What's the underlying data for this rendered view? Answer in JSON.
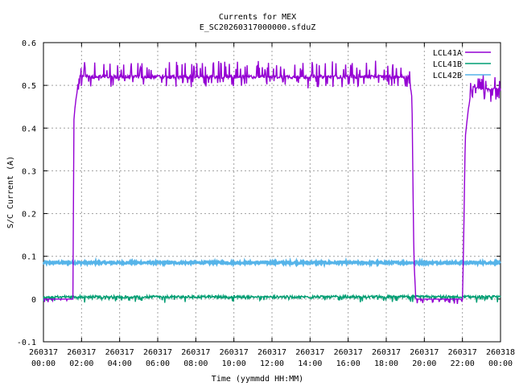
{
  "chart_data": {
    "type": "line",
    "title": "Currents for MEX",
    "subtitle": "E_SC20260317000000.sfduZ",
    "xlabel": "Time (yymmdd HH:MM)",
    "ylabel": "S/C Current (A)",
    "ylim": [
      -0.1,
      0.6
    ],
    "yticks": [
      -0.1,
      0,
      0.1,
      0.2,
      0.3,
      0.4,
      0.5,
      0.6
    ],
    "ytick_labels": [
      "-0.1",
      "0",
      "0.1",
      "0.2",
      "0.3",
      "0.4",
      "0.5",
      "0.6"
    ],
    "xlim_hours": [
      0,
      24
    ],
    "xticks": [
      {
        "h": 0,
        "date": "260317",
        "time": "00:00"
      },
      {
        "h": 2,
        "date": "260317",
        "time": "02:00"
      },
      {
        "h": 4,
        "date": "260317",
        "time": "04:00"
      },
      {
        "h": 6,
        "date": "260317",
        "time": "06:00"
      },
      {
        "h": 8,
        "date": "260317",
        "time": "08:00"
      },
      {
        "h": 10,
        "date": "260317",
        "time": "10:00"
      },
      {
        "h": 12,
        "date": "260317",
        "time": "12:00"
      },
      {
        "h": 14,
        "date": "260317",
        "time": "14:00"
      },
      {
        "h": 16,
        "date": "260317",
        "time": "16:00"
      },
      {
        "h": 18,
        "date": "260317",
        "time": "18:00"
      },
      {
        "h": 20,
        "date": "260317",
        "time": "20:00"
      },
      {
        "h": 22,
        "date": "260317",
        "time": "22:00"
      },
      {
        "h": 24,
        "date": "260318",
        "time": "00:00"
      }
    ],
    "grid": true,
    "legend_position": "top-right",
    "series": [
      {
        "name": "LCL41A",
        "color": "#9400d3",
        "x": [
          0,
          1.55,
          1.6,
          1.68,
          1.8,
          1.9,
          2.0,
          6.0,
          10.0,
          14.0,
          18.0,
          19.2,
          19.35,
          19.45,
          19.55,
          22.0,
          22.05,
          22.15,
          22.3,
          22.45,
          22.6,
          23.0,
          24.0
        ],
        "y": [
          0.0,
          0.0,
          0.42,
          0.46,
          0.5,
          0.52,
          0.52,
          0.52,
          0.52,
          0.52,
          0.52,
          0.52,
          0.47,
          0.1,
          0.0,
          0.0,
          0.1,
          0.38,
          0.44,
          0.49,
          0.5,
          0.49,
          0.49
        ]
      },
      {
        "name": "LCL41B",
        "color": "#009e73",
        "x": [
          0,
          24
        ],
        "y": [
          0.005,
          0.005
        ]
      },
      {
        "name": "LCL42B",
        "color": "#56b4e9",
        "x": [
          0,
          24
        ],
        "y": [
          0.085,
          0.085
        ]
      }
    ]
  }
}
